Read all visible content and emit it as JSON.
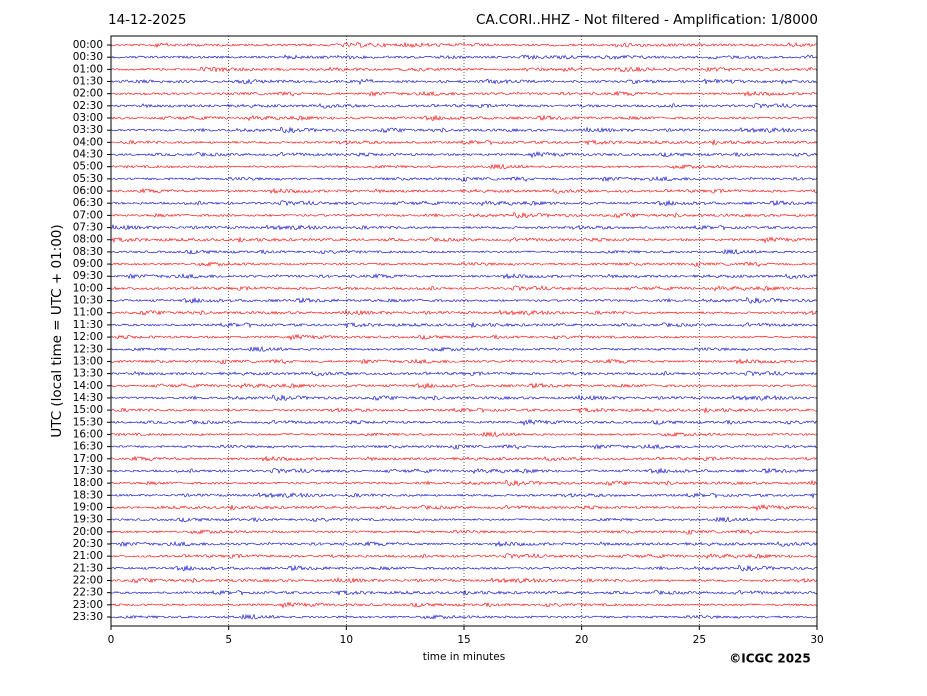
{
  "chart_data": {
    "type": "helicorder",
    "title": "14-12-2025",
    "subtitle": "CA.CORI..HHZ - Not filtered - Amplification: 1/8000",
    "ylabel": "UTC (local time = UTC + 01:00)",
    "xlabel": "time in minutes",
    "footer": "©ICGC 2025",
    "categories": [
      "00:00",
      "00:30",
      "01:00",
      "01:30",
      "02:00",
      "02:30",
      "03:00",
      "03:30",
      "04:00",
      "04:30",
      "05:00",
      "05:30",
      "06:00",
      "06:30",
      "07:00",
      "07:30",
      "08:00",
      "08:30",
      "09:00",
      "09:30",
      "10:00",
      "10:30",
      "11:00",
      "11:30",
      "12:00",
      "12:30",
      "13:00",
      "13:30",
      "14:00",
      "14:30",
      "15:00",
      "15:30",
      "16:00",
      "16:30",
      "17:00",
      "17:30",
      "18:00",
      "18:30",
      "19:00",
      "19:30",
      "20:00",
      "20:30",
      "21:00",
      "21:30",
      "22:00",
      "22:30",
      "23:00",
      "23:30"
    ],
    "colors": [
      "#ff0000",
      "#0000cc"
    ],
    "xlim": [
      0,
      30
    ],
    "xticks": [
      0,
      5,
      10,
      15,
      20,
      25,
      30
    ],
    "grid": true
  }
}
